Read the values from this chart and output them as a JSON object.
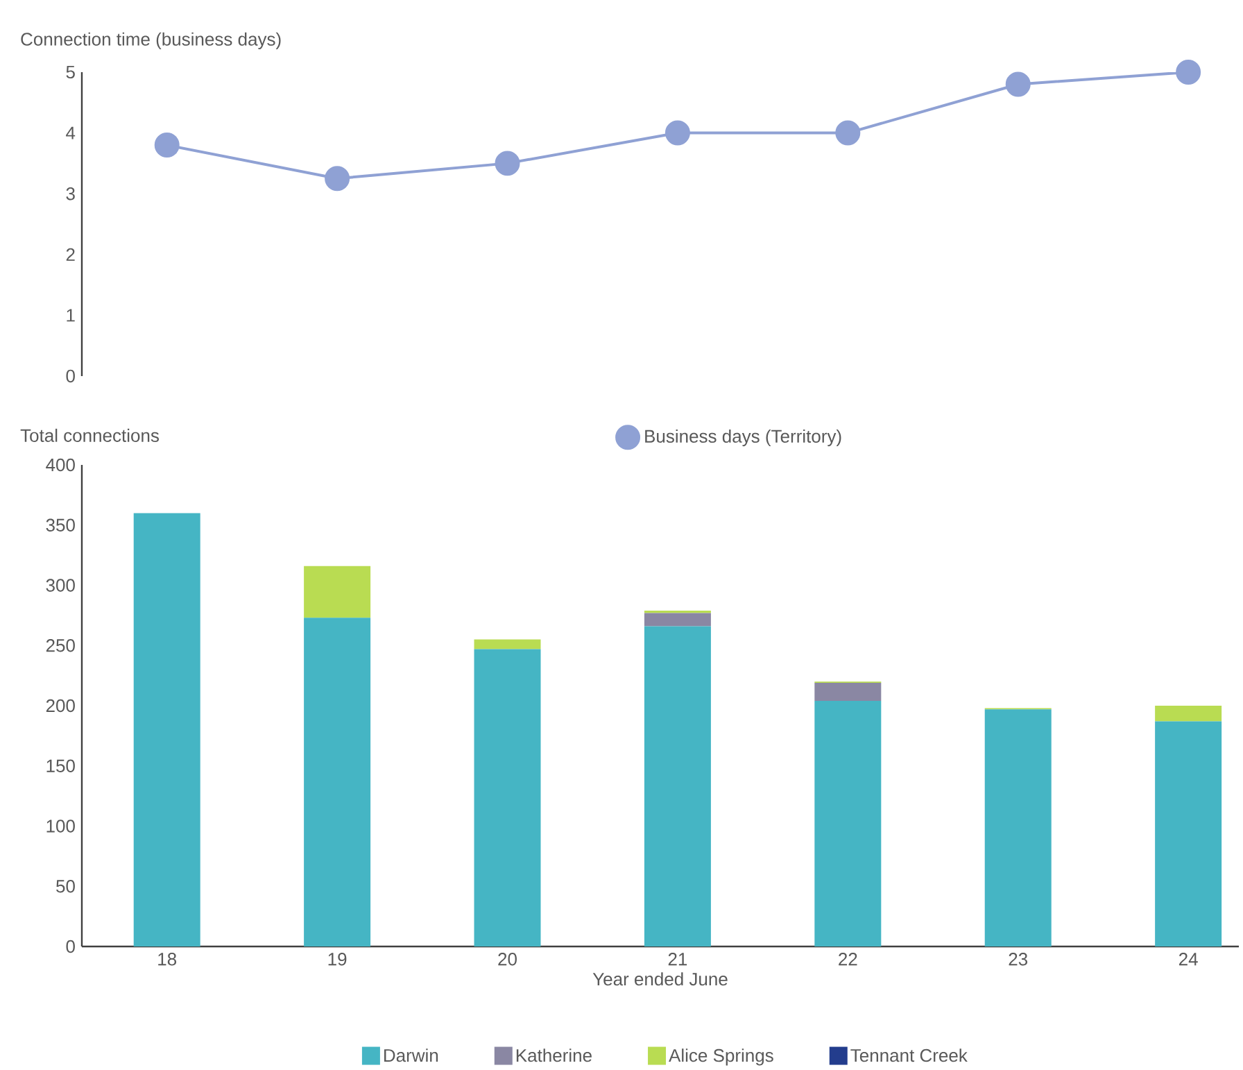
{
  "chart_data": [
    {
      "type": "line",
      "ylabel": "Connection time (business days)",
      "categories": [
        null,
        null,
        null,
        null,
        null,
        null,
        null
      ],
      "series": [
        {
          "name": "Business days (Territory)",
          "color": "#8fa1d4",
          "values": [
            3.8,
            3.25,
            3.5,
            4,
            4,
            4.8,
            5.0
          ]
        }
      ],
      "ylim": [
        0,
        5
      ],
      "yticks": [
        0,
        1,
        2,
        3,
        4,
        5
      ],
      "tick_labels": "y",
      "marker": "circle",
      "line_style": "solid",
      "legend": "bottom",
      "grid": false
    },
    {
      "type": "bar",
      "stacked": true,
      "ylabel": "Total connections",
      "xlabel": "Year ended June",
      "categories": [
        "18",
        "19",
        "20",
        "21",
        "22",
        "23",
        "24"
      ],
      "series": [
        {
          "name": "Darwin",
          "color": "#45b5c4",
          "values": [
            360,
            273,
            247,
            266,
            204,
            197,
            187
          ]
        },
        {
          "name": "Katherine",
          "color": "#8a87a3",
          "values": [
            0,
            0,
            0,
            11,
            15,
            0,
            0
          ]
        },
        {
          "name": "Alice Springs",
          "color": "#b9dc52",
          "values": [
            0,
            43,
            8,
            2,
            1,
            1,
            13
          ]
        },
        {
          "name": "Tennant Creek",
          "color": "#233d8d",
          "values": [
            0,
            0,
            0,
            0,
            0,
            0,
            0
          ]
        }
      ],
      "ylim": [
        0,
        400
      ],
      "yticks": [
        0,
        50,
        100,
        150,
        200,
        250,
        300,
        350,
        400
      ],
      "legend": "bottom",
      "grid": false
    }
  ]
}
